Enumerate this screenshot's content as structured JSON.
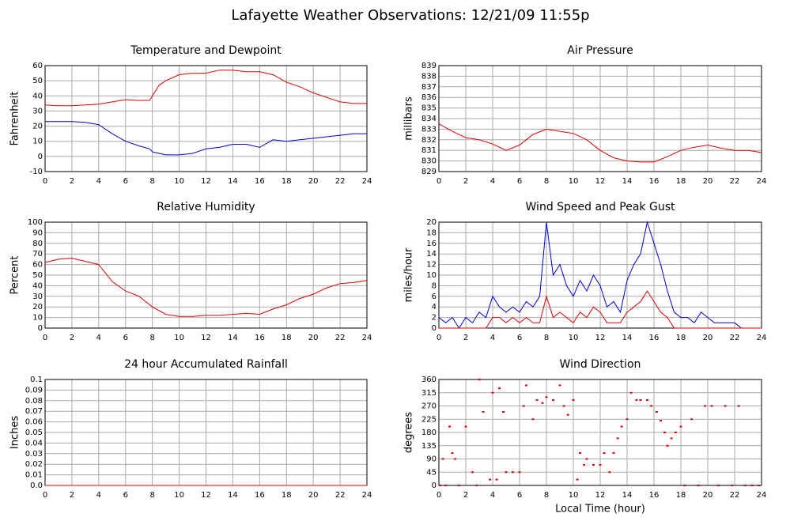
{
  "title": "Lafayette Weather Observations: 12/21/09 11:55p",
  "chart_data": [
    {
      "type": "line",
      "title": "Temperature and Dewpoint",
      "y_label": "Fahrenheit",
      "grid": true,
      "xlim": [
        0,
        24
      ],
      "xticks": [
        0,
        2,
        4,
        6,
        8,
        10,
        12,
        14,
        16,
        18,
        20,
        22,
        24
      ],
      "ylim": [
        -10,
        60
      ],
      "yticks": [
        -10,
        0,
        10,
        20,
        30,
        40,
        50,
        60
      ],
      "x": [
        0,
        1,
        2,
        3,
        4,
        5,
        6,
        7,
        7.8,
        8,
        8.5,
        9,
        10,
        11,
        12,
        13,
        14,
        15,
        16,
        17,
        18,
        19,
        20,
        21,
        22,
        23,
        24
      ],
      "series": [
        {
          "color": "#e00000",
          "values": [
            34,
            33.5,
            33.5,
            34,
            34.5,
            36,
            37.5,
            37,
            37,
            40,
            47,
            50,
            54,
            55,
            55,
            57,
            57,
            56,
            56,
            54,
            49,
            46,
            42,
            39,
            36,
            35,
            35
          ]
        },
        {
          "color": "#0000d0",
          "values": [
            23,
            23,
            23,
            22.5,
            21,
            15,
            10,
            7,
            5,
            3,
            2,
            1,
            1,
            2,
            5,
            6,
            8,
            8,
            6,
            11,
            10,
            11,
            12,
            13,
            14,
            15,
            15
          ]
        }
      ]
    },
    {
      "type": "line",
      "title": "Air Pressure",
      "y_label": "millibars",
      "grid": true,
      "xlim": [
        0,
        24
      ],
      "xticks": [
        0,
        2,
        4,
        6,
        8,
        10,
        12,
        14,
        16,
        18,
        20,
        22,
        24
      ],
      "ylim": [
        829,
        839
      ],
      "yticks": [
        829,
        830,
        831,
        832,
        833,
        834,
        835,
        836,
        837,
        838,
        839
      ],
      "x": [
        0,
        1,
        2,
        3,
        4,
        5,
        6,
        7,
        8,
        9,
        10,
        11,
        12,
        13,
        14,
        15,
        16,
        17,
        18,
        19,
        20,
        21,
        22,
        23,
        24
      ],
      "series": [
        {
          "color": "#e00000",
          "values": [
            833.5,
            832.8,
            832.2,
            832,
            831.6,
            831,
            831.5,
            832.5,
            833,
            832.8,
            832.6,
            832,
            831,
            830.3,
            830,
            829.9,
            829.9,
            830.4,
            831,
            831.3,
            831.5,
            831.2,
            831,
            831,
            830.8
          ]
        }
      ]
    },
    {
      "type": "line",
      "title": "Relative Humidity",
      "y_label": "Percent",
      "grid": true,
      "xlim": [
        0,
        24
      ],
      "xticks": [
        0,
        2,
        4,
        6,
        8,
        10,
        12,
        14,
        16,
        18,
        20,
        22,
        24
      ],
      "ylim": [
        0,
        100
      ],
      "yticks": [
        0,
        10,
        20,
        30,
        40,
        50,
        60,
        70,
        80,
        90,
        100
      ],
      "x": [
        0,
        1,
        2,
        3,
        4,
        5,
        6,
        7,
        8,
        9,
        10,
        11,
        12,
        13,
        14,
        15,
        16,
        17,
        18,
        19,
        20,
        21,
        22,
        23,
        24
      ],
      "series": [
        {
          "color": "#e00000",
          "values": [
            62,
            65,
            66,
            63,
            60,
            44,
            35,
            30,
            20,
            13,
            11,
            11,
            12,
            12,
            13,
            14,
            13,
            18,
            22,
            28,
            32,
            38,
            42,
            43,
            45
          ]
        }
      ]
    },
    {
      "type": "line",
      "title": "Wind Speed and Peak Gust",
      "y_label": "miles/hour",
      "grid": true,
      "xlim": [
        0,
        24
      ],
      "xticks": [
        0,
        2,
        4,
        6,
        8,
        10,
        12,
        14,
        16,
        18,
        20,
        22,
        24
      ],
      "ylim": [
        0,
        20
      ],
      "yticks": [
        0,
        2,
        4,
        6,
        8,
        10,
        12,
        14,
        16,
        18,
        20
      ],
      "x": [
        0,
        0.5,
        1,
        1.5,
        2,
        2.5,
        3,
        3.5,
        4,
        4.5,
        5,
        5.5,
        6,
        6.5,
        7,
        7.5,
        8,
        8.5,
        9,
        9.5,
        10,
        10.5,
        11,
        11.5,
        12,
        12.5,
        13,
        13.5,
        14,
        14.5,
        15,
        15.5,
        16,
        16.5,
        17,
        17.5,
        18,
        18.5,
        19,
        19.5,
        20,
        20.5,
        21,
        21.5,
        22,
        22.5,
        23,
        23.5,
        24
      ],
      "series": [
        {
          "color": "#0000d0",
          "values": [
            2,
            1,
            2,
            0,
            2,
            1,
            3,
            2,
            6,
            4,
            3,
            4,
            3,
            5,
            4,
            6,
            20,
            10,
            12,
            8,
            6,
            9,
            7,
            10,
            8,
            4,
            5,
            3,
            9,
            12,
            14,
            20,
            16,
            12,
            7,
            3,
            2,
            2,
            1,
            3,
            2,
            1,
            1,
            1,
            1,
            0,
            0,
            0,
            0
          ]
        },
        {
          "color": "#e00000",
          "values": [
            0,
            0,
            0,
            0,
            0,
            0,
            0,
            0,
            2,
            2,
            1,
            2,
            1,
            2,
            1,
            1,
            6,
            2,
            3,
            2,
            1,
            3,
            2,
            4,
            3,
            1,
            1,
            1,
            3,
            4,
            5,
            7,
            5,
            3,
            2,
            0,
            0,
            0,
            0,
            0,
            0,
            0,
            0,
            0,
            0,
            0,
            0,
            0,
            0
          ]
        }
      ]
    },
    {
      "type": "line",
      "title": "24 hour Accumulated Rainfall",
      "y_label": "Inches",
      "grid": true,
      "xlim": [
        0,
        24
      ],
      "xticks": [
        0,
        2,
        4,
        6,
        8,
        10,
        12,
        14,
        16,
        18,
        20,
        22,
        24
      ],
      "ylim": [
        0,
        0.1
      ],
      "yticks": [
        {
          "value": 0,
          "label": "0.0"
        },
        0.01,
        0.02,
        0.03,
        0.04,
        0.05,
        0.06,
        0.07,
        0.08,
        0.09,
        0.1
      ],
      "x": [
        0,
        6,
        12,
        18,
        24
      ],
      "series": [
        {
          "color": "#e00000",
          "values": [
            0,
            0,
            0,
            0,
            0
          ]
        }
      ]
    },
    {
      "type": "scatter",
      "title": "Wind Direction",
      "y_label": "degrees",
      "x_label": "Local Time (hour)",
      "grid": true,
      "color": "#e00000",
      "xlim": [
        0,
        24
      ],
      "xticks": [
        0,
        2,
        4,
        6,
        8,
        10,
        12,
        14,
        16,
        18,
        20,
        22,
        24
      ],
      "ylim": [
        0,
        360
      ],
      "yticks": [
        0,
        45,
        90,
        135,
        180,
        225,
        270,
        315,
        360
      ],
      "x": [
        0.1,
        0.3,
        0.5,
        0.8,
        1,
        1.2,
        1.5,
        2,
        2.5,
        2.8,
        3,
        3.3,
        3.8,
        4,
        4.3,
        4.5,
        4.8,
        5,
        5.5,
        6,
        6.3,
        6.5,
        7,
        7.3,
        7.7,
        8,
        8.5,
        9,
        9.3,
        9.6,
        10,
        10.3,
        10.5,
        10.8,
        11,
        11.5,
        12,
        12.3,
        12.7,
        13,
        13.3,
        13.6,
        14,
        14.3,
        14.7,
        15,
        15.5,
        15.8,
        16.2,
        16.5,
        16.8,
        17,
        17.3,
        17.6,
        18,
        18.3,
        18.8,
        19.3,
        19.8,
        20.3,
        20.8,
        21.3,
        21.8,
        22.3,
        22.8,
        23.3,
        23.8
      ],
      "values": [
        0,
        90,
        0,
        200,
        110,
        90,
        0,
        200,
        45,
        0,
        360,
        250,
        20,
        315,
        20,
        330,
        250,
        45,
        45,
        45,
        270,
        340,
        225,
        290,
        280,
        300,
        290,
        340,
        270,
        240,
        290,
        20,
        110,
        70,
        90,
        70,
        70,
        110,
        45,
        110,
        160,
        200,
        225,
        315,
        290,
        290,
        290,
        270,
        250,
        220,
        180,
        135,
        160,
        180,
        200,
        0,
        225,
        0,
        270,
        270,
        0,
        270,
        0,
        270,
        0,
        0,
        0
      ]
    }
  ]
}
